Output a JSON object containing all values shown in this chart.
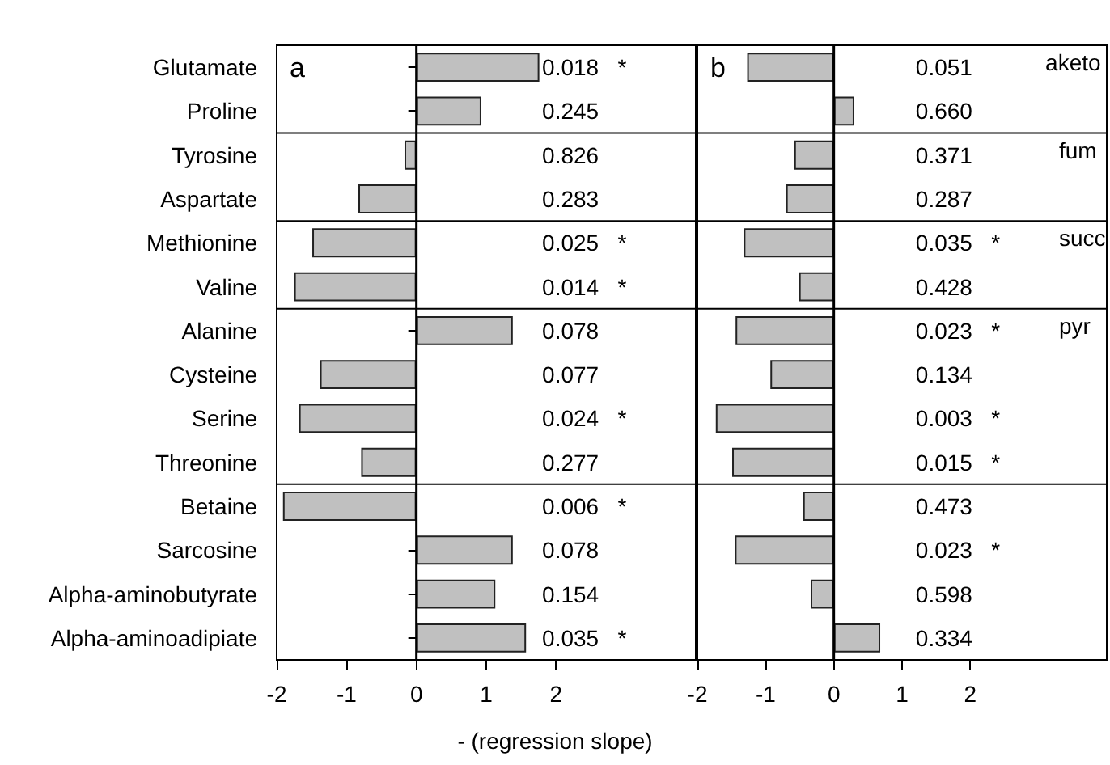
{
  "chart_data": [
    {
      "type": "bar",
      "title": "a",
      "orientation": "horizontal",
      "xlabel": "- (regression slope)",
      "categories": [
        "Glutamate",
        "Proline",
        "Tyrosine",
        "Aspartate",
        "Methionine",
        "Valine",
        "Alanine",
        "Cysteine",
        "Serine",
        "Threonine",
        "Betaine",
        "Sarcosine",
        "Alpha-aminobutyrate",
        "Alpha-aminoadipiate"
      ],
      "values": [
        1.76,
        0.93,
        -0.17,
        -0.83,
        -1.49,
        -1.75,
        1.38,
        -1.38,
        -1.68,
        -0.79,
        -1.91,
        1.38,
        1.13,
        1.57
      ],
      "annotations": [
        "0.018   *",
        "0.245",
        "0.826",
        "0.283",
        "0.025   *",
        "0.014   *",
        "0.078",
        "0.077",
        "0.024   *",
        "0.277",
        "0.006   *",
        "0.078",
        "0.154",
        "0.035   *"
      ],
      "color": "#c0c0c0",
      "xlim": [
        -2,
        4
      ],
      "xticks": [
        -2,
        -1,
        0,
        1,
        2
      ],
      "ref_lines": [
        {
          "axis": "x",
          "value": 0,
          "color": "#000000"
        }
      ],
      "grid": false
    },
    {
      "type": "bar",
      "title": "b",
      "orientation": "horizontal",
      "categories": [
        null,
        null,
        null,
        null,
        null,
        null,
        null,
        null,
        null,
        null,
        null,
        null,
        null,
        null
      ],
      "values": [
        -1.27,
        0.3,
        -0.58,
        -0.7,
        -1.32,
        -0.51,
        -1.44,
        -0.93,
        -1.73,
        -1.49,
        -0.45,
        -1.45,
        -0.34,
        0.68
      ],
      "annotations": [
        "0.051",
        "0.660",
        "0.371",
        "0.287",
        "0.035   *",
        "0.428",
        "0.023   *",
        "0.134",
        "0.003   *",
        "0.015   *",
        "0.473",
        "0.023   *",
        "0.598",
        "0.334",
        "aketo",
        "fum",
        "succ",
        "pyr"
      ],
      "color": "#c0c0c0",
      "xlim": [
        -2,
        4
      ],
      "xticks": [
        -2,
        -1,
        0,
        1,
        2
      ],
      "tick_labels": "x",
      "ref_lines": [
        {
          "axis": "x",
          "value": 0,
          "color": "#000000"
        }
      ],
      "grid": false
    }
  ]
}
